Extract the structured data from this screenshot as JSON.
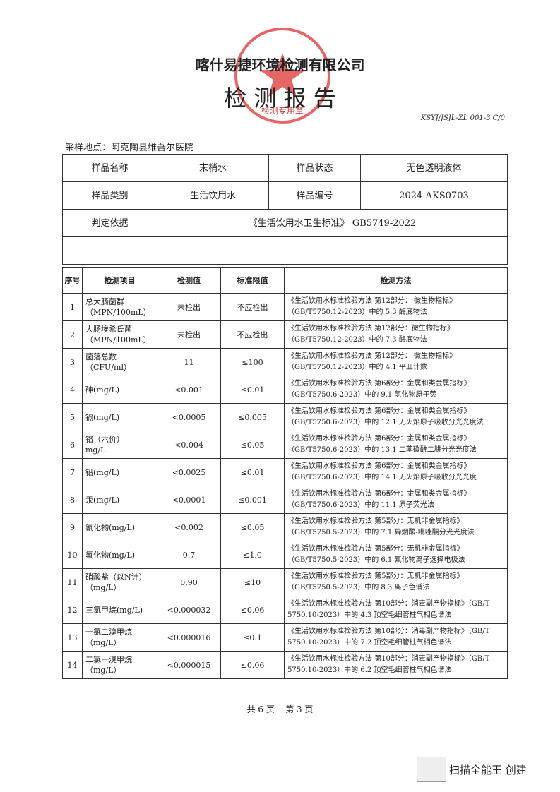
{
  "header": {
    "company": "喀什易捷环境检测有限公司",
    "title": "检 测 报 告",
    "code": "KSYJ/JSJL-ZL 001-3 C/0",
    "stamp": "检测专用章"
  },
  "sampling_site": "采样地点：阿克陶县维吾尔医院",
  "info": {
    "rows": [
      [
        "样品名称",
        "末梢水",
        "样品状态",
        "无色透明液体"
      ],
      [
        "样品类别",
        "生活饮用水",
        "样品编号",
        "2024-AKS0703"
      ],
      [
        "判定依据",
        "《生活饮用水卫生标准》 GB5749-2022"
      ]
    ]
  },
  "table": {
    "headers": [
      "序号",
      "检测项目",
      "检测值",
      "标准限值",
      "检测方法"
    ],
    "rows": [
      {
        "no": "1",
        "item": [
          "总大肠菌群",
          "（MPN/100mL）"
        ],
        "value": "未检出",
        "limit": "不应检出",
        "method": [
          "《生活饮用水标准检验方法 第12部分： 微生物指标》",
          "（GB/T5750.12-2023）中的 5.3 酶底物法"
        ]
      },
      {
        "no": "2",
        "item": [
          "大肠埃希氏菌",
          "（MPN/100mL）"
        ],
        "value": "未检出",
        "limit": "不应检出",
        "method": [
          "《生活饮用水标准检验方法 第12部分：微生物指标》",
          "（GB/T5750.12-2023）中的 7.3 酶底物法"
        ]
      },
      {
        "no": "3",
        "item": [
          "菌落总数",
          "（CFU/ml）"
        ],
        "value": "11",
        "limit": "≤100",
        "method": [
          "《生活饮用水标准检验方法 第12部分： 微生物指标》",
          "（GB/T5750.12-2023）中的 4.1 平皿计数"
        ]
      },
      {
        "no": "4",
        "item": [
          "砷(mg/L)"
        ],
        "value": "<0.001",
        "limit": "≤0.01",
        "method": [
          "《生活饮用水标准检验方法 第6部分：金属和类金属指标》",
          "（GB/T5750.6-2023）中的 9.1 氢化物原子荧"
        ]
      },
      {
        "no": "5",
        "item": [
          "镉(mg/L)"
        ],
        "value": "<0.0005",
        "limit": "≤0.005",
        "method": [
          "《生活饮用水标准检验方法 第6部分：金属和类金属指标》",
          "（GB/T5750.6-2023）中的 12.1 无火焰原子吸收分光光度法"
        ]
      },
      {
        "no": "6",
        "item": [
          "铬（六价）",
          "mg/L"
        ],
        "value": "<0.004",
        "limit": "≤0.05",
        "method": [
          "《生活饮用水标准检验方法 第6部分：金属和类金属指标》",
          "（GB/T5750.6-2023）中的 13.1 二苯碳酰二肼分光光度法"
        ]
      },
      {
        "no": "7",
        "item": [
          "铅(mg/L)"
        ],
        "value": "<0.0025",
        "limit": "≤0.01",
        "method": [
          "《生活饮用水标准检验方法 第6部分：金属和类金属指标》",
          "（GB/T5750.6-2023）中的 14.1 无火焰原子吸收分光光度"
        ]
      },
      {
        "no": "8",
        "item": [
          "汞(mg/L)"
        ],
        "value": "<0.0001",
        "limit": "≤0.001",
        "method": [
          "《生活饮用水标准检验方法 第6部分：金属和类金属指标》",
          "（GB/T5750.6-2023）中的 11.1 原子荧光法"
        ]
      },
      {
        "no": "9",
        "item": [
          "氰化物(mg/L)"
        ],
        "value": "<0.002",
        "limit": "≤0.05",
        "method": [
          "《生活饮用水标准检验方法 第5部分：无机非金属指标》",
          "（GB/T5750.5-2023）中的 7.1 异烟酸-吡唑酮分光光度法"
        ]
      },
      {
        "no": "10",
        "item": [
          "氟化物(mg/L)"
        ],
        "value": "0.7",
        "limit": "≤1.0",
        "method": [
          "《生活饮用水标准检验方法 第5部分：无机非金属指标》",
          "（GB/T5750.5-2023）中的 6.1 氟化物离子选择电极法"
        ]
      },
      {
        "no": "11",
        "item": [
          "硝酸盐（以N计）",
          "（mg/L）"
        ],
        "value": "0.90",
        "limit": "≤10",
        "method": [
          "《生活饮用水标准检验方法 第5部分：无机非金属指标》",
          "（GB/T5750.5-2023）中的 8.3 离子色谱法"
        ]
      },
      {
        "no": "12",
        "item": [
          "三氯甲烷(mg/L)"
        ],
        "value": "<0.000032",
        "limit": "≤0.06",
        "method": [
          "《生活饮用水标准检验方法 第10部分：消毒副产物指标》（GB/T",
          "5750.10-2023）中的 4.3 顶空毛细管柱气相色谱法"
        ]
      },
      {
        "no": "13",
        "item": [
          "一氯二溴甲烷",
          "（mg/L）"
        ],
        "value": "<0.000016",
        "limit": "≤0.1",
        "method": [
          "《生活饮用水标准检验方法 第10部分：消毒副产物指标》（GB/T",
          "5750.10-2023）中的 7.2 顶空毛细管柱气相色谱法"
        ]
      },
      {
        "no": "14",
        "item": [
          "二氯一溴甲烷",
          "（mg/L）"
        ],
        "value": "<0.000015",
        "limit": "≤0.06",
        "method": [
          "《生活饮用水标准检验方法 第10部分：消毒副产物指标》（GB/T",
          "5750.10-2023）中的 6.2 顶空毛细管柱气相色谱法"
        ]
      }
    ]
  },
  "footer": "共 6 页    第 3 页",
  "watermark": "扫描全能王 创建"
}
